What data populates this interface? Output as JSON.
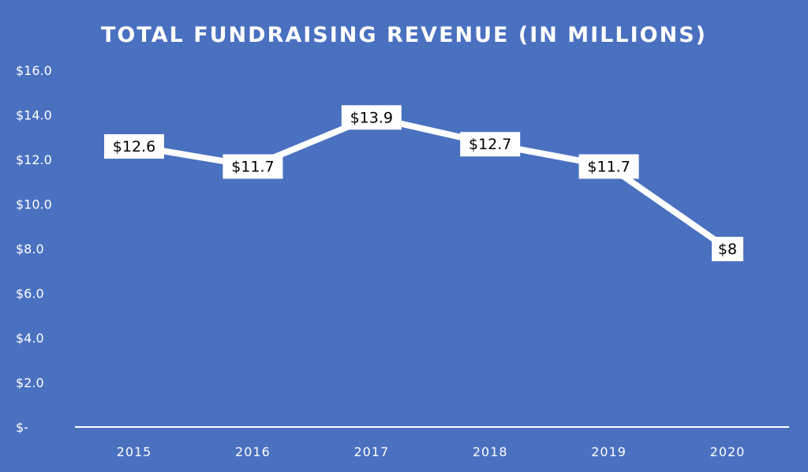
{
  "chart_data": {
    "type": "line",
    "title": "TOTAL FUNDRAISING REVENUE (IN MILLIONS)",
    "categories": [
      "2015",
      "2016",
      "2017",
      "2018",
      "2019",
      "2020"
    ],
    "values": [
      12.6,
      11.7,
      13.9,
      12.7,
      11.7,
      8
    ],
    "data_labels": [
      "$12.6",
      "$11.7",
      "$13.9",
      "$12.7",
      "$11.7",
      "$8"
    ],
    "yticks": [
      "$-",
      "$2.0",
      "$4.0",
      "$6.0",
      "$8.0",
      "$10.0",
      "$12.0",
      "$14.0",
      "$16.0"
    ],
    "ylim": [
      0,
      16
    ],
    "grid": false,
    "drop_lines": true,
    "colors": {
      "background": "#4a70c0",
      "line": "#ffffff",
      "label_box": "#ffffff"
    }
  }
}
